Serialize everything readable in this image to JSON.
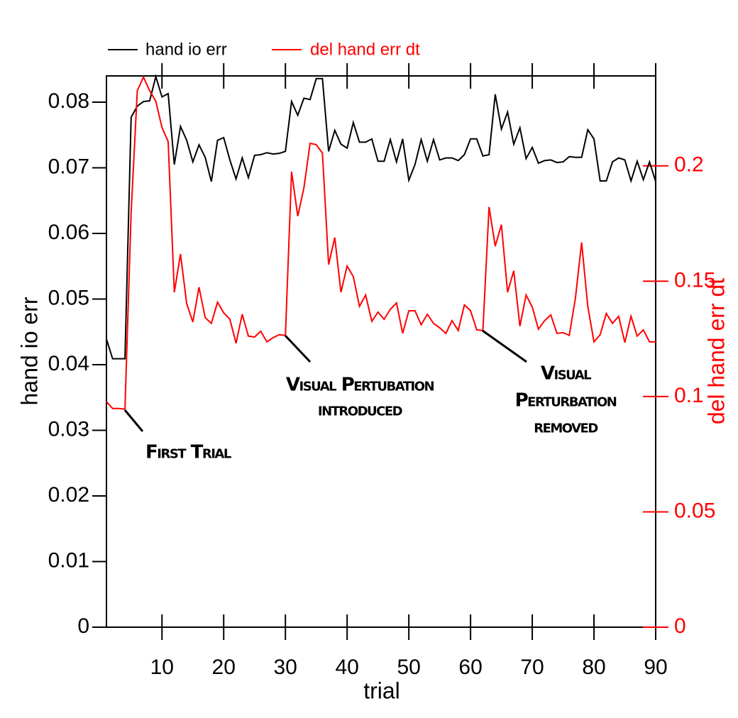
{
  "chart_data": {
    "type": "line",
    "x_label": "trial",
    "y_label": "hand io err",
    "y2_label": "del hand err dt",
    "legend": "top",
    "x": [
      1,
      2,
      3,
      4,
      5,
      6,
      7,
      8,
      9,
      10,
      11,
      12,
      13,
      14,
      15,
      16,
      17,
      18,
      19,
      20,
      21,
      22,
      23,
      24,
      25,
      26,
      27,
      28,
      29,
      30,
      31,
      32,
      33,
      34,
      35,
      36,
      37,
      38,
      39,
      40,
      41,
      42,
      43,
      44,
      45,
      46,
      47,
      48,
      49,
      50,
      51,
      52,
      53,
      54,
      55,
      56,
      57,
      58,
      59,
      60,
      61,
      62,
      63,
      64,
      65,
      66,
      67,
      68,
      69,
      70,
      71,
      72,
      73,
      74,
      75,
      76,
      77,
      78,
      79,
      80,
      81,
      82,
      83,
      84,
      85,
      86,
      87,
      88,
      89,
      90
    ],
    "xlim": [
      1,
      90
    ],
    "xticks": [
      10,
      20,
      30,
      40,
      50,
      60,
      70,
      80,
      90
    ],
    "ylim": [
      0,
      0.084
    ],
    "yticks": [
      0,
      0.01,
      0.02,
      0.03,
      0.04,
      0.05,
      0.06,
      0.07,
      0.08
    ],
    "y2lim": [
      0,
      0.239
    ],
    "y2ticks": [
      0,
      0.05,
      0.1,
      0.15,
      0.2
    ],
    "series": [
      {
        "name": "hand io err",
        "color": "#000000",
        "values": [
          0.0439,
          0.0409,
          0.0409,
          0.0409,
          0.0777,
          0.0794,
          0.0801,
          0.0802,
          0.0839,
          0.0808,
          0.0813,
          0.0705,
          0.0763,
          0.0742,
          0.0709,
          0.0735,
          0.0716,
          0.0679,
          0.0742,
          0.0746,
          0.0712,
          0.0683,
          0.0715,
          0.0685,
          0.0719,
          0.072,
          0.0723,
          0.0721,
          0.0722,
          0.0725,
          0.0801,
          0.078,
          0.0806,
          0.0804,
          0.0836,
          0.0836,
          0.0725,
          0.0757,
          0.0736,
          0.073,
          0.0769,
          0.0739,
          0.0739,
          0.0744,
          0.071,
          0.071,
          0.0743,
          0.0709,
          0.0744,
          0.0681,
          0.0705,
          0.0743,
          0.071,
          0.0743,
          0.0712,
          0.0715,
          0.0715,
          0.0711,
          0.072,
          0.0744,
          0.0744,
          0.0718,
          0.072,
          0.0812,
          0.0759,
          0.0785,
          0.0736,
          0.0761,
          0.0714,
          0.0731,
          0.0707,
          0.0711,
          0.0712,
          0.0708,
          0.0709,
          0.0717,
          0.0716,
          0.0716,
          0.0758,
          0.0744,
          0.068,
          0.068,
          0.0709,
          0.0715,
          0.0712,
          0.068,
          0.071,
          0.0682,
          0.0709,
          0.0679
        ]
      },
      {
        "name": "del hand err dt",
        "color": "#ff0000",
        "axis": "y2",
        "values": [
          0.0978,
          0.0948,
          0.0948,
          0.0945,
          0.1797,
          0.2326,
          0.2385,
          0.2326,
          0.228,
          0.2166,
          0.2105,
          0.1452,
          0.1618,
          0.1403,
          0.1323,
          0.1474,
          0.1342,
          0.1317,
          0.1409,
          0.1363,
          0.1335,
          0.1231,
          0.1357,
          0.1262,
          0.1258,
          0.1283,
          0.1237,
          0.1255,
          0.1268,
          0.1265,
          0.1975,
          0.1782,
          0.1905,
          0.2098,
          0.2092,
          0.2055,
          0.1572,
          0.1689,
          0.1452,
          0.1566,
          0.152,
          0.1391,
          0.144,
          0.1326,
          0.1366,
          0.1335,
          0.1378,
          0.1406,
          0.1274,
          0.1372,
          0.1372,
          0.1311,
          0.1357,
          0.1317,
          0.1298,
          0.1274,
          0.1329,
          0.1286,
          0.1397,
          0.1372,
          0.1289,
          0.1286,
          0.1822,
          0.1652,
          0.1745,
          0.1452,
          0.1545,
          0.1305,
          0.144,
          0.1388,
          0.1292,
          0.1329,
          0.1354,
          0.1274,
          0.1277,
          0.1265,
          0.1428,
          0.1668,
          0.1391,
          0.1237,
          0.1268,
          0.136,
          0.1317,
          0.1348,
          0.1234,
          0.1348,
          0.1262,
          0.1289,
          0.1237,
          0.1237
        ]
      }
    ],
    "annotations": [
      {
        "lines": [
          "First Trial"
        ]
      },
      {
        "lines": [
          "Visual Pertubation",
          "introduced"
        ]
      },
      {
        "lines": [
          "Visual",
          "Perturbation",
          "removed"
        ]
      }
    ]
  }
}
